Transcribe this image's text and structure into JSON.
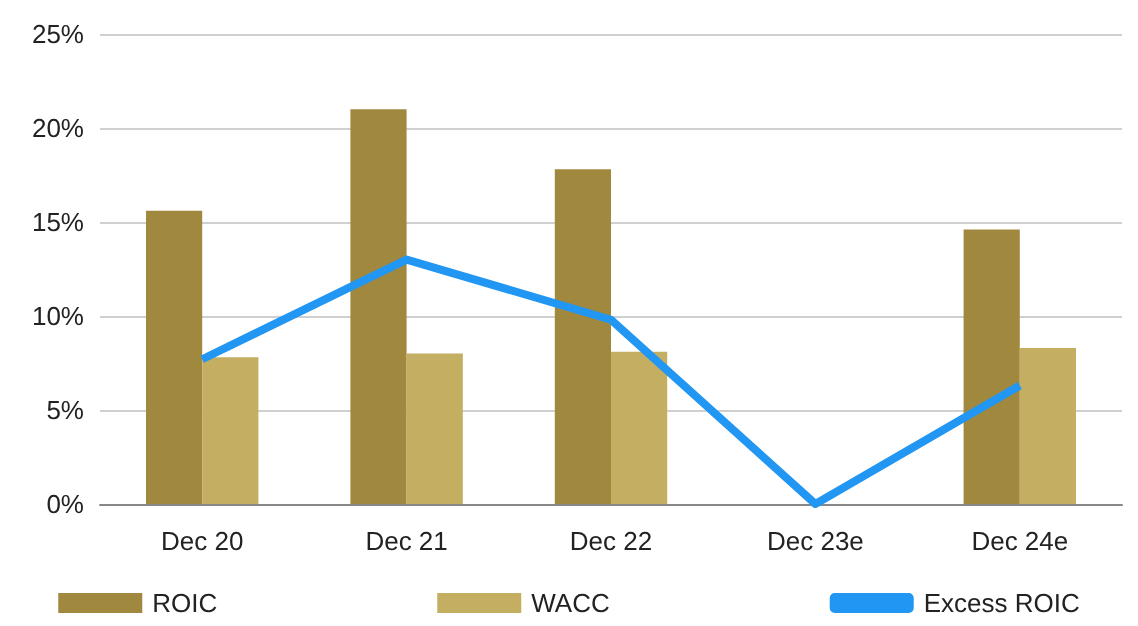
{
  "chart_data": {
    "type": "bar",
    "categories": [
      "Dec 20",
      "Dec 21",
      "Dec 22",
      "Dec 23e",
      "Dec 24e"
    ],
    "series": [
      {
        "name": "ROIC",
        "color": "#a0893e",
        "values": [
          15.6,
          21.0,
          17.8,
          null,
          14.6
        ]
      },
      {
        "name": "WACC",
        "color": "#c4ae62",
        "values": [
          7.8,
          8.0,
          8.1,
          null,
          8.3
        ]
      },
      {
        "name": "Excess ROIC",
        "type": "line",
        "color": "#2196f3",
        "values": [
          7.7,
          13.0,
          9.8,
          0,
          6.3
        ]
      }
    ],
    "ylim": [
      0,
      25
    ],
    "yticks": [
      {
        "value": 0,
        "label": "0%"
      },
      {
        "value": 5,
        "label": "5%"
      },
      {
        "value": 10,
        "label": "10%"
      },
      {
        "value": 15,
        "label": "15%"
      },
      {
        "value": 20,
        "label": "20%"
      },
      {
        "value": 25,
        "label": "25%"
      }
    ],
    "grid": "y",
    "legend": "bottom",
    "marker": "none"
  }
}
